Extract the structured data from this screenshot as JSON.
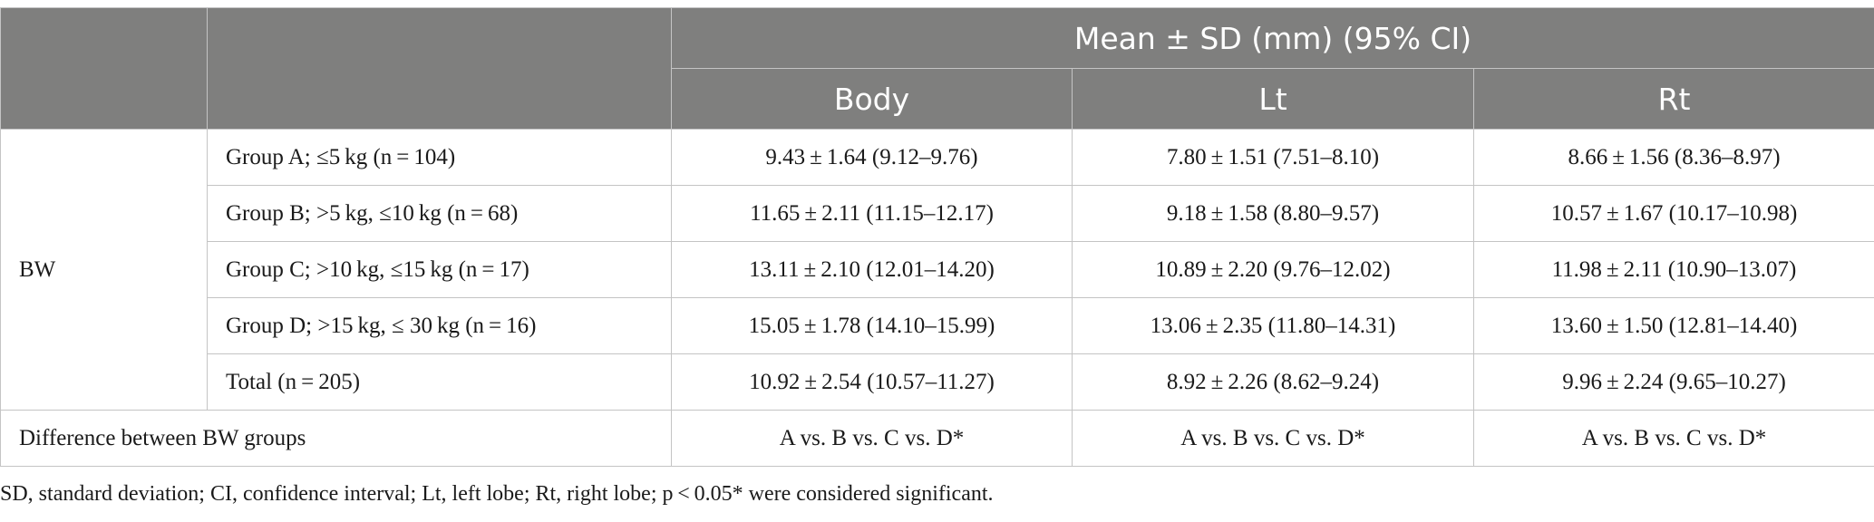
{
  "header": {
    "super": "Mean ± SD (mm) (95% CI)",
    "columns": [
      "Body",
      "Lt",
      "Rt"
    ]
  },
  "row_group_label": "BW",
  "rows": [
    {
      "label": "Group A; ≤5 kg (n = 104)",
      "body": "9.43 ± 1.64 (9.12–9.76)",
      "lt": "7.80 ± 1.51 (7.51–8.10)",
      "rt": "8.66 ± 1.56 (8.36–8.97)"
    },
    {
      "label": "Group B; >5 kg, ≤10 kg (n = 68)",
      "body": "11.65 ± 2.11 (11.15–12.17)",
      "lt": "9.18 ± 1.58 (8.80–9.57)",
      "rt": "10.57 ± 1.67 (10.17–10.98)"
    },
    {
      "label": "Group C; >10 kg, ≤15 kg (n = 17)",
      "body": "13.11 ± 2.10 (12.01–14.20)",
      "lt": "10.89 ± 2.20 (9.76–12.02)",
      "rt": "11.98 ± 2.11 (10.90–13.07)"
    },
    {
      "label": "Group D; >15 kg, ≤ 30 kg (n = 16)",
      "body": "15.05 ± 1.78 (14.10–15.99)",
      "lt": "13.06 ± 2.35 (11.80–14.31)",
      "rt": "13.60 ± 1.50 (12.81–14.40)"
    },
    {
      "label": "Total (n = 205)",
      "body": "10.92 ± 2.54 (10.57–11.27)",
      "lt": "8.92 ± 2.26 (8.62–9.24)",
      "rt": "9.96 ± 2.24 (9.65–10.27)"
    }
  ],
  "difference": {
    "label": "Difference between BW groups",
    "body": "A vs. B vs. C vs. D*",
    "lt": "A vs. B vs. C vs. D*",
    "rt": "A vs. B vs. C vs. D*"
  },
  "footnote": "SD, standard deviation; CI, confidence interval; Lt, left lobe; Rt, right lobe; p < 0.05* were considered significant."
}
